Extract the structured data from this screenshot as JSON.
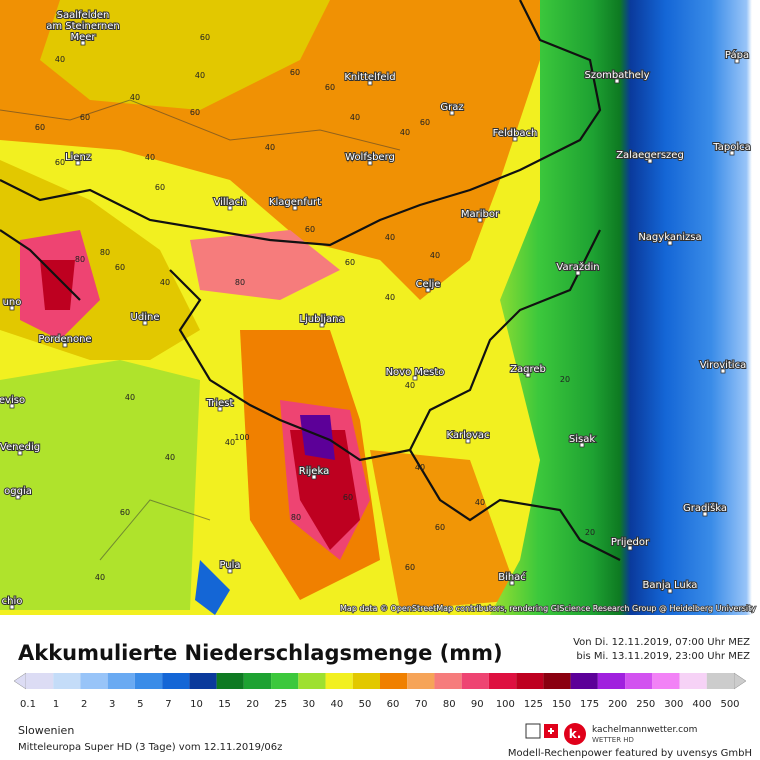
{
  "map": {
    "cities": [
      [
        "Saalfelden",
        "am Steinernen",
        "Meer"
      ],
      [
        "Knittelfeld"
      ],
      [
        "Szombathely"
      ],
      [
        "Pápa"
      ],
      [
        "Graz"
      ],
      [
        "Feldbach"
      ],
      [
        "Lienz"
      ],
      [
        "Wolfsberg"
      ],
      [
        "Zalaegerszeg"
      ],
      [
        "Tapolca"
      ],
      [
        "Villach"
      ],
      [
        "Klagenfurt"
      ],
      [
        "Maribor"
      ],
      [
        "Nagykanizsa"
      ],
      [
        "Varaždin"
      ],
      [
        "Celje"
      ],
      [
        "Udine"
      ],
      [
        "Ljubljana"
      ],
      [
        "uno"
      ],
      [
        "Pordenone"
      ],
      [
        "Novo Mesto"
      ],
      [
        "Zagreb"
      ],
      [
        "Virovitica"
      ],
      [
        "eviso"
      ],
      [
        "Triest"
      ],
      [
        "Karlovac"
      ],
      [
        "Sisak"
      ],
      [
        "Venedig"
      ],
      [
        "Rijeka"
      ],
      [
        "oggia"
      ],
      [
        "Gradiška"
      ],
      [
        "Prijedor"
      ],
      [
        "Pula"
      ],
      [
        "Bihać"
      ],
      [
        "Banja Luka"
      ],
      [
        "chio"
      ]
    ],
    "isoline_labels": [
      40,
      60,
      40,
      60,
      60,
      40,
      60,
      60,
      40,
      60,
      40,
      60,
      40,
      40,
      60,
      60,
      80,
      80,
      60,
      40,
      40,
      60,
      60,
      80,
      100,
      80,
      60,
      40,
      40,
      40,
      40,
      20,
      40,
      40,
      60,
      60,
      40,
      40,
      60,
      20,
      40
    ],
    "attribution": "Map data © OpenStreetMap contributors, rendering GIScience Research Group @ Heidelberg University"
  },
  "footer": {
    "title": "Akkumulierte Niederschlagsmenge (mm)",
    "period_from": "Von Di. 12.11.2019, 07:00 Uhr MEZ",
    "period_to": "bis Mi. 13.11.2019, 23:00 Uhr MEZ",
    "legend": {
      "labels": [
        "0.1",
        "1",
        "2",
        "3",
        "5",
        "7",
        "10",
        "15",
        "20",
        "25",
        "30",
        "40",
        "50",
        "60",
        "70",
        "80",
        "90",
        "100",
        "125",
        "150",
        "175",
        "200",
        "250",
        "300",
        "400",
        "500"
      ],
      "colors": [
        "#dcdcf4",
        "#c4dcf8",
        "#98c4f8",
        "#6aaaf2",
        "#3a8ce8",
        "#1466d6",
        "#0a3a9c",
        "#0e7a22",
        "#1ea232",
        "#3cc83c",
        "#9ee030",
        "#f2f020",
        "#e2c800",
        "#f08000",
        "#f6a458",
        "#f67c7c",
        "#ee4472",
        "#de1040",
        "#be0020",
        "#8a0010",
        "#5c0098",
        "#a020de",
        "#d252f0",
        "#f282f6",
        "#f6d2f6",
        "#cccccc"
      ]
    },
    "region": "Slowenien",
    "model": "Mitteleuropa Super HD (3 Tage) vom 12.11.2019/06z",
    "brand": "kachelmannwetter.com",
    "brand_sub": "WETTER HD",
    "credit": "Modell-Rechenpower featured by uvensys GmbH"
  }
}
